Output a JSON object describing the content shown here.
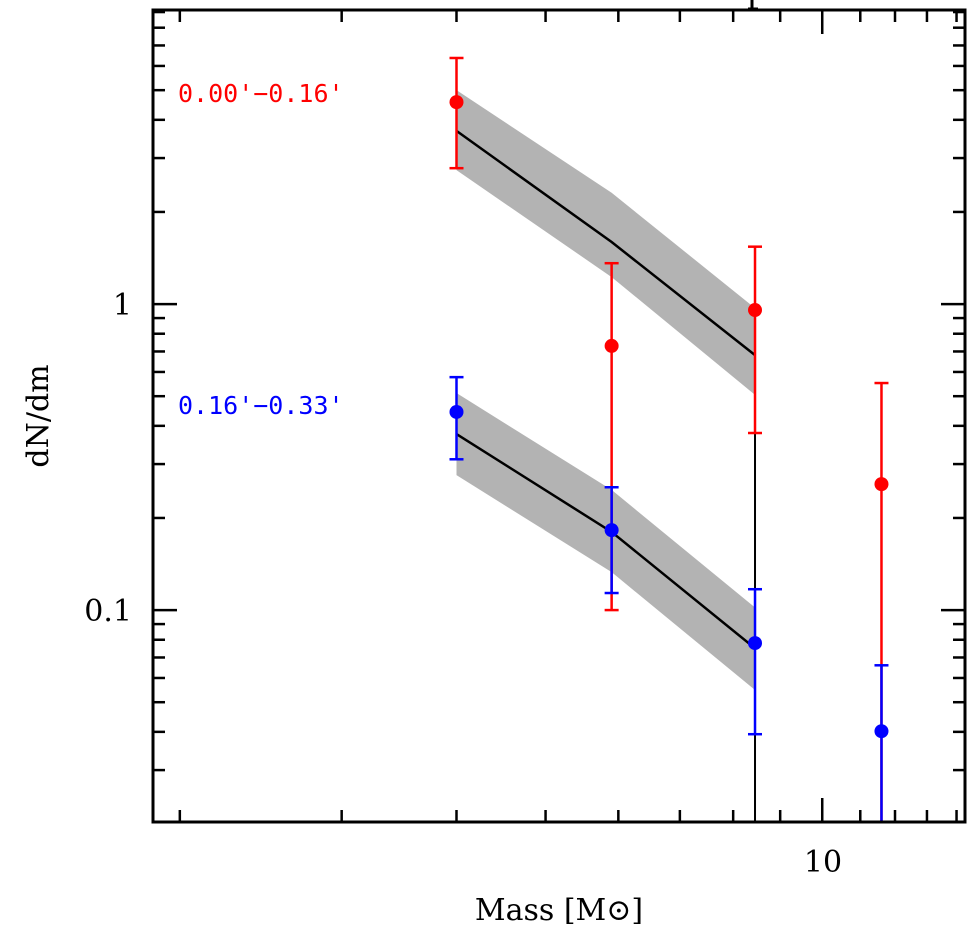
{
  "chart_data": {
    "type": "scatter",
    "title": "",
    "xlabel": "Mass [M⊙]",
    "ylabel": "dN/dm",
    "xscale": "log",
    "yscale": "log",
    "xlim": [
      1.87,
      14.3
    ],
    "ylim": [
      0.0203,
      9.14
    ],
    "x_tick_labels": [
      {
        "value": 10,
        "label": "10"
      }
    ],
    "y_tick_labels": [
      {
        "value": 1,
        "label": "1"
      },
      {
        "value": 0.1,
        "label": "0.1"
      }
    ],
    "grid": false,
    "series": [
      {
        "name": "0.00'−0.16'",
        "color": "#ff0000",
        "label_position": "top-left",
        "points": [
          {
            "x": 4.0,
            "y": 4.57,
            "y_low": 2.78,
            "y_high": 6.37
          },
          {
            "x": 5.9,
            "y": 0.73,
            "y_low": 0.1,
            "y_high": 1.36
          },
          {
            "x": 8.45,
            "y": 0.956,
            "y_low": 0.379,
            "y_high": 1.54
          },
          {
            "x": 11.6,
            "y": 0.258,
            "y_low": 0.01,
            "y_high": 0.552
          }
        ],
        "model": {
          "x": [
            4.0,
            5.9,
            8.45
          ],
          "y": [
            3.68,
            1.595,
            0.681
          ],
          "y_upper": [
            5.0,
            2.31,
            0.97
          ],
          "y_lower": [
            2.74,
            1.225,
            0.505
          ]
        }
      },
      {
        "name": "0.16'−0.33'",
        "color": "#0000ff",
        "label_position": "middle-left",
        "points": [
          {
            "x": 4.0,
            "y": 0.444,
            "y_low": 0.311,
            "y_high": 0.577
          },
          {
            "x": 5.9,
            "y": 0.1825,
            "y_low": 0.1137,
            "y_high": 0.252
          },
          {
            "x": 8.45,
            "y": 0.078,
            "y_low": 0.0393,
            "y_high": 0.117
          },
          {
            "x": 11.6,
            "y": 0.0402,
            "y_low": 0.01,
            "y_high": 0.066
          }
        ],
        "model": {
          "x": [
            4.0,
            5.9,
            8.45
          ],
          "y": [
            0.376,
            0.18,
            0.075
          ],
          "y_upper": [
            0.512,
            0.247,
            0.102
          ],
          "y_lower": [
            0.276,
            0.133,
            0.0548
          ]
        }
      }
    ],
    "band_color": "#b3b3b3",
    "model_line_color": "#000000",
    "vertical_line": {
      "x": 8.45,
      "y_from": 0.379,
      "y_to": 0.0203,
      "color": "#000000"
    }
  }
}
